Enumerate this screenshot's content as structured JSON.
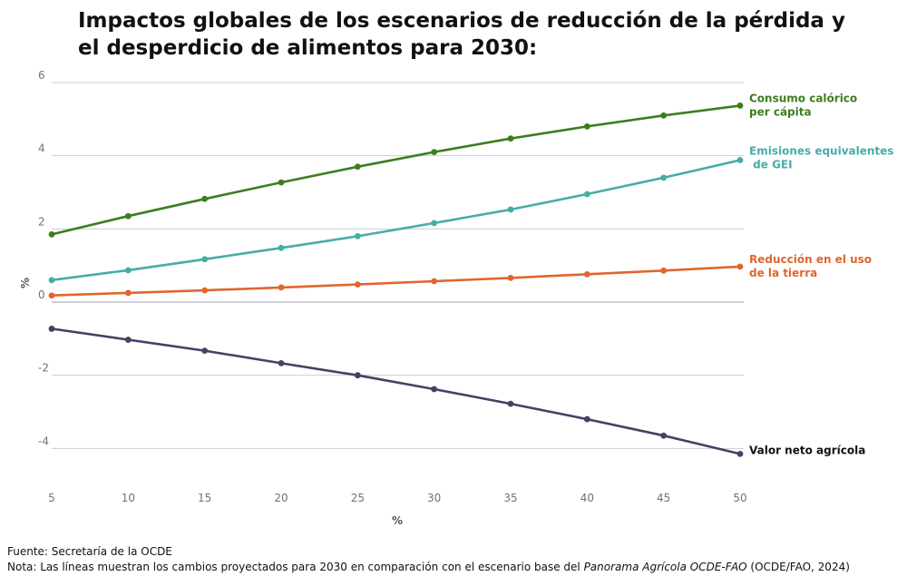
{
  "chart_data": {
    "type": "line",
    "title": "Impactos globales de los escenarios de reducción de la pérdida y el desperdicio de alimentos para 2030:",
    "xlabel": "%",
    "ylabel": "%",
    "xlim": [
      5,
      50
    ],
    "ylim": [
      -5,
      6
    ],
    "xticks": [
      5,
      10,
      15,
      20,
      25,
      30,
      35,
      40,
      45,
      50
    ],
    "yticks": [
      6,
      4,
      2,
      0,
      -2,
      -4
    ],
    "x": [
      5,
      10,
      15,
      20,
      25,
      30,
      35,
      40,
      45,
      50
    ],
    "grid": true,
    "series": [
      {
        "name": "Consumo calórico per cápita",
        "label_lines": [
          "Consumo calórico",
          "per cápita"
        ],
        "color": "#3d7d1e",
        "values": [
          1.85,
          2.35,
          2.82,
          3.27,
          3.7,
          4.1,
          4.47,
          4.8,
          5.1,
          5.37
        ]
      },
      {
        "name": "Emisiones equivalentes de GEI",
        "label_lines": [
          "Emisiones equivalentes",
          " de GEI"
        ],
        "color": "#45ada8",
        "values": [
          0.6,
          0.87,
          1.17,
          1.48,
          1.8,
          2.16,
          2.53,
          2.95,
          3.4,
          3.88
        ]
      },
      {
        "name": "Reducción en el uso de la tierra",
        "label_lines": [
          "Reducción en el uso",
          "de la tierra"
        ],
        "color": "#e0662c",
        "values": [
          0.18,
          0.25,
          0.32,
          0.4,
          0.48,
          0.57,
          0.66,
          0.76,
          0.86,
          0.97
        ]
      },
      {
        "name": "Valor neto agrícola",
        "label_lines": [
          "Valor neto agrícola"
        ],
        "color": "#3f4466",
        "label_color": "#111111",
        "values": [
          -0.73,
          -1.03,
          -1.33,
          -1.67,
          -2.0,
          -2.38,
          -2.78,
          -3.2,
          -3.65,
          -4.15
        ]
      }
    ]
  },
  "footer": {
    "source": "Fuente: Secretaría de la OCDE",
    "note_prefix": "Nota: Las líneas muestran los cambios proyectados para 2030 en comparación con el escenario base del ",
    "note_italic": "Panorama Agrícola OCDE-FAO",
    "note_suffix": " (OCDE/FAO, 2024)"
  }
}
